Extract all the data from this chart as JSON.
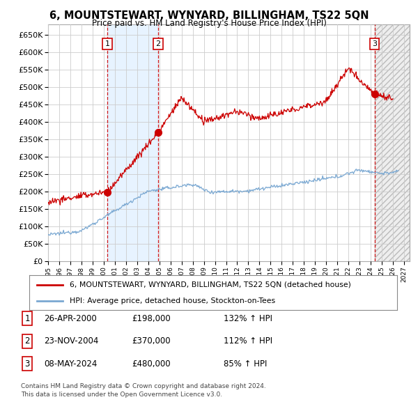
{
  "title": "6, MOUNTSTEWART, WYNYARD, BILLINGHAM, TS22 5QN",
  "subtitle": "Price paid vs. HM Land Registry's House Price Index (HPI)",
  "ylim": [
    0,
    680000
  ],
  "yticks": [
    0,
    50000,
    100000,
    150000,
    200000,
    250000,
    300000,
    350000,
    400000,
    450000,
    500000,
    550000,
    600000,
    650000
  ],
  "xlim_start": 1995.0,
  "xlim_end": 2027.5,
  "transactions": [
    {
      "num": 1,
      "date_label": "26-APR-2000",
      "price": 198000,
      "hpi_pct": "132% ↑ HPI",
      "x": 2000.32
    },
    {
      "num": 2,
      "date_label": "23-NOV-2004",
      "price": 370000,
      "hpi_pct": "112% ↑ HPI",
      "x": 2004.9
    },
    {
      "num": 3,
      "date_label": "08-MAY-2024",
      "price": 480000,
      "hpi_pct": "85% ↑ HPI",
      "x": 2024.36
    }
  ],
  "legend_line1": "6, MOUNTSTEWART, WYNYARD, BILLINGHAM, TS22 5QN (detached house)",
  "legend_line2": "HPI: Average price, detached house, Stockton-on-Tees",
  "footer1": "Contains HM Land Registry data © Crown copyright and database right 2024.",
  "footer2": "This data is licensed under the Open Government Licence v3.0.",
  "bg_color": "#ffffff",
  "grid_color": "#cccccc",
  "hpi_color": "#7aa8d2",
  "price_color": "#cc0000",
  "vline_color": "#cc0000",
  "marker_color": "#cc0000",
  "shade_color": "#ddeeff",
  "hatch_facecolor": "#e8e8e8"
}
